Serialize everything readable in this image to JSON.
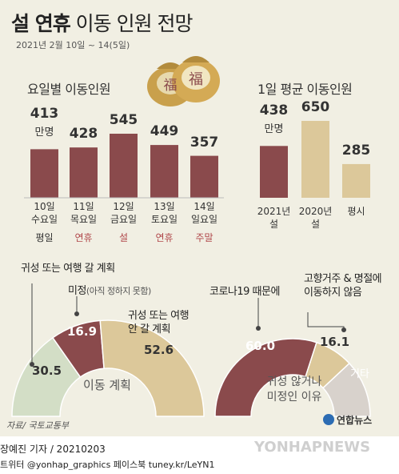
{
  "title_bold": "설 연휴",
  "title_rest": " 이동 인원 전망",
  "subtitle": "2021년 2월 10일 ~ 14(5일)",
  "colors": {
    "maroon": "#8a4a4c",
    "tan": "#dcc89a",
    "green": "#d3dec6",
    "grey": "#d8d2cc",
    "red_text": "#b0474a",
    "bg": "#f1efe3"
  },
  "chart_data": [
    {
      "type": "bar",
      "title": "요일별 이동인원",
      "unit": "만명",
      "categories": [
        "10일 수요일",
        "11일 목요일",
        "12일 금요일",
        "13일 토요일",
        "14일 일요일"
      ],
      "values": [
        413,
        428,
        545,
        449,
        357
      ],
      "tags": [
        "평일",
        "연휴",
        "설",
        "연휴",
        "주말"
      ]
    },
    {
      "type": "bar",
      "title": "1일 평균 이동인원",
      "unit": "만명",
      "categories": [
        "2021년 설",
        "2020년 설",
        "평시"
      ],
      "values": [
        438,
        650,
        285
      ]
    },
    {
      "type": "pie",
      "title": "이동 계획",
      "slices": [
        {
          "label": "귀성 또는 여행 갈 계획",
          "value": 30.5
        },
        {
          "label": "미정",
          "value": 16.9
        },
        {
          "label": "귀성 또는 여행 안 갈 계획",
          "value": 52.6
        }
      ]
    },
    {
      "type": "pie",
      "title": "귀성 않거나 미정인 이유",
      "slices": [
        {
          "label": "코로나19 때문에",
          "value": 60.0
        },
        {
          "label": "고향거주 & 명절에 이동하지 않음",
          "value": 16.1
        },
        {
          "label": "기타",
          "value": 23.9
        }
      ]
    }
  ],
  "bars1": {
    "values_text": [
      "413",
      "428",
      "545",
      "449",
      "357"
    ],
    "unit": "만명",
    "days": [
      "10일",
      "11일",
      "12일",
      "13일",
      "14일"
    ],
    "weekdays": [
      "수요일",
      "목요일",
      "금요일",
      "토요일",
      "일요일"
    ],
    "tags": [
      "평일",
      "연휴",
      "설",
      "연휴",
      "주말"
    ]
  },
  "bars2": {
    "values_text": [
      "438",
      "650",
      "285"
    ],
    "unit": "만명",
    "line1": [
      "2021년",
      "2020년",
      "평시"
    ],
    "line2": [
      "설",
      "설",
      ""
    ]
  },
  "pie1": {
    "ann_go": "귀성 또는 여행 갈 계획",
    "ann_undecided": "미정",
    "ann_undecided_note": "(아직 정하지 못함)",
    "ann_no_1": "귀성 또는 여행",
    "ann_no_2": "안 갈 계획",
    "v_go": "30.5",
    "v_undecided": "16.9",
    "v_no": "52.6",
    "center": "이동 계획"
  },
  "pie2": {
    "ann_home_1": "고향거주 & 명절에",
    "ann_home_2": "이동하지 않음",
    "ann_covid": "코로나19 때문에",
    "v_covid": "60.0",
    "v_home": "16.1",
    "v_etc": "기타",
    "center_1": "귀성 않거나",
    "center_2": "미정인 이유"
  },
  "source": "자료/ 국토교통부",
  "logo": "연합뉴스",
  "credit_line1": "장예진 기자 / 20210203",
  "credit_line2": "트위터 @yonhap_graphics  페이스북 tuney.kr/LeYN1",
  "watermark": "YONHAPNEWS",
  "decor_char": "福"
}
